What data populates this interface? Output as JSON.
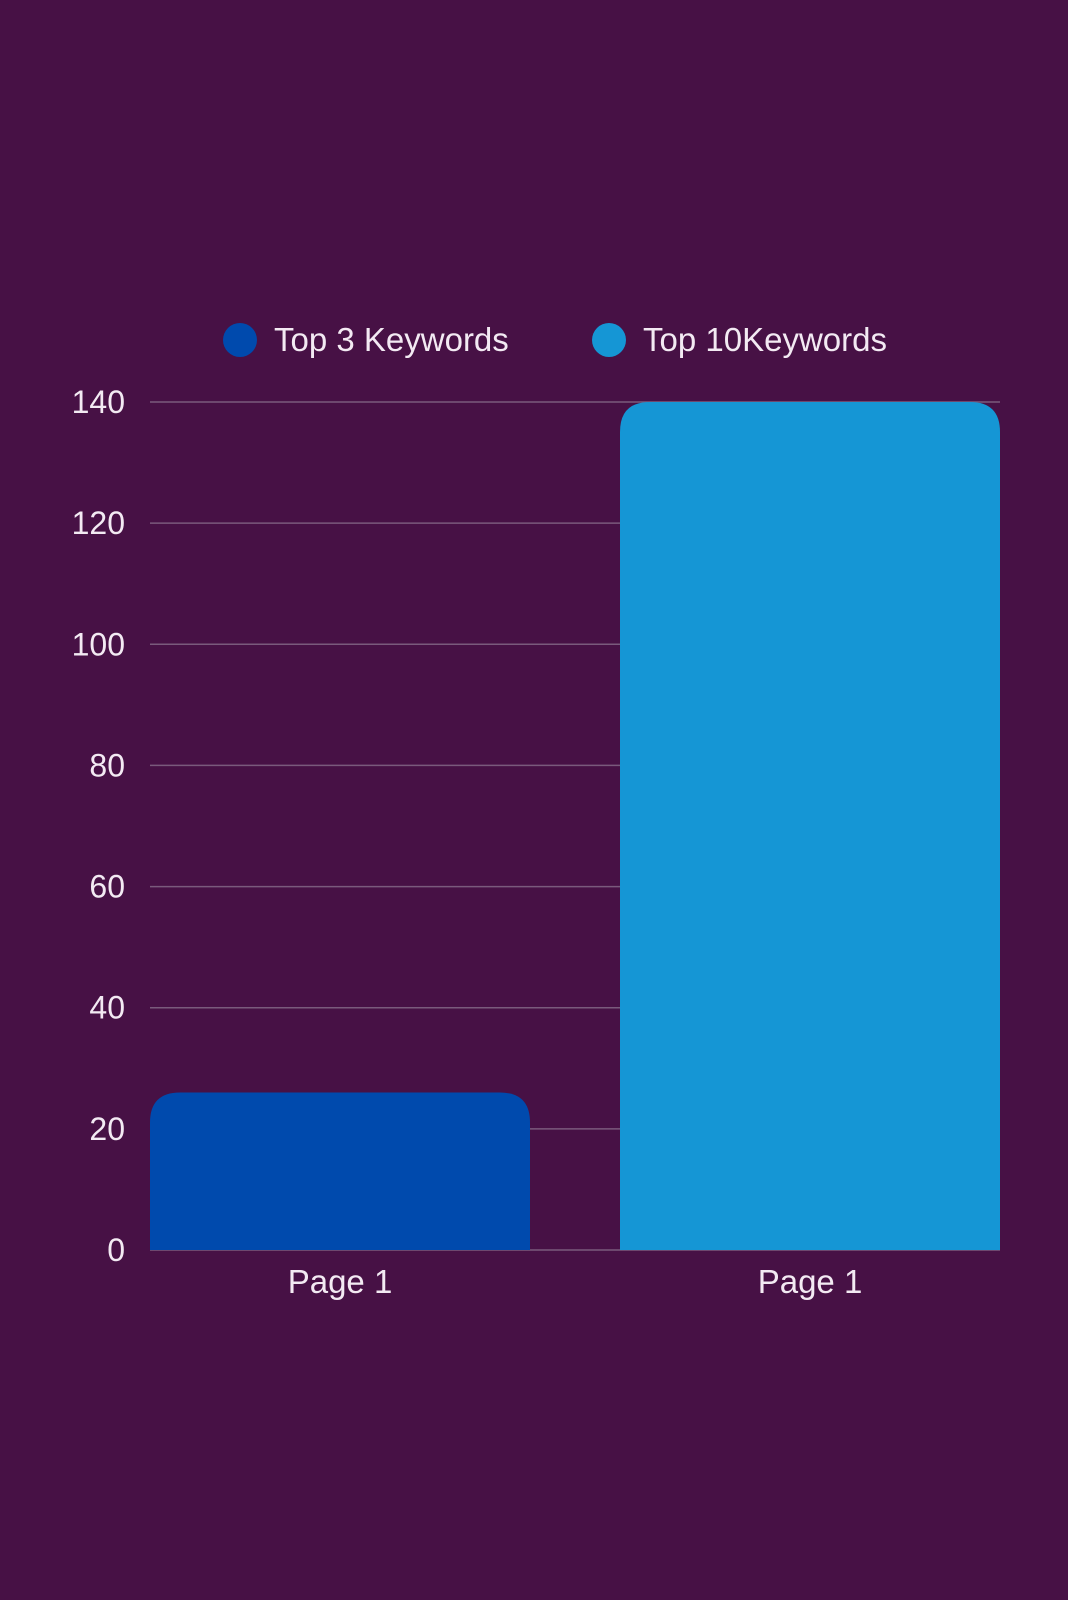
{
  "chart_data": {
    "type": "bar",
    "categories": [
      "Page 1",
      "Page 1"
    ],
    "series": [
      {
        "name": "Top 3 Keywords",
        "color": "#004aad",
        "values": [
          26,
          null
        ]
      },
      {
        "name": "Top 10Keywords",
        "color": "#1596d5",
        "values": [
          null,
          140
        ]
      }
    ],
    "y_ticks": [
      "0",
      "20",
      "40",
      "60",
      "80",
      "100",
      "120",
      "140"
    ],
    "ylim": [
      0,
      140
    ],
    "grid": true,
    "legend_position": "top-center",
    "title": "",
    "xlabel": "",
    "ylabel": ""
  },
  "colors": {
    "background": "#471145",
    "gridline": "#7a5a7c",
    "text": "#f3eaf3"
  }
}
